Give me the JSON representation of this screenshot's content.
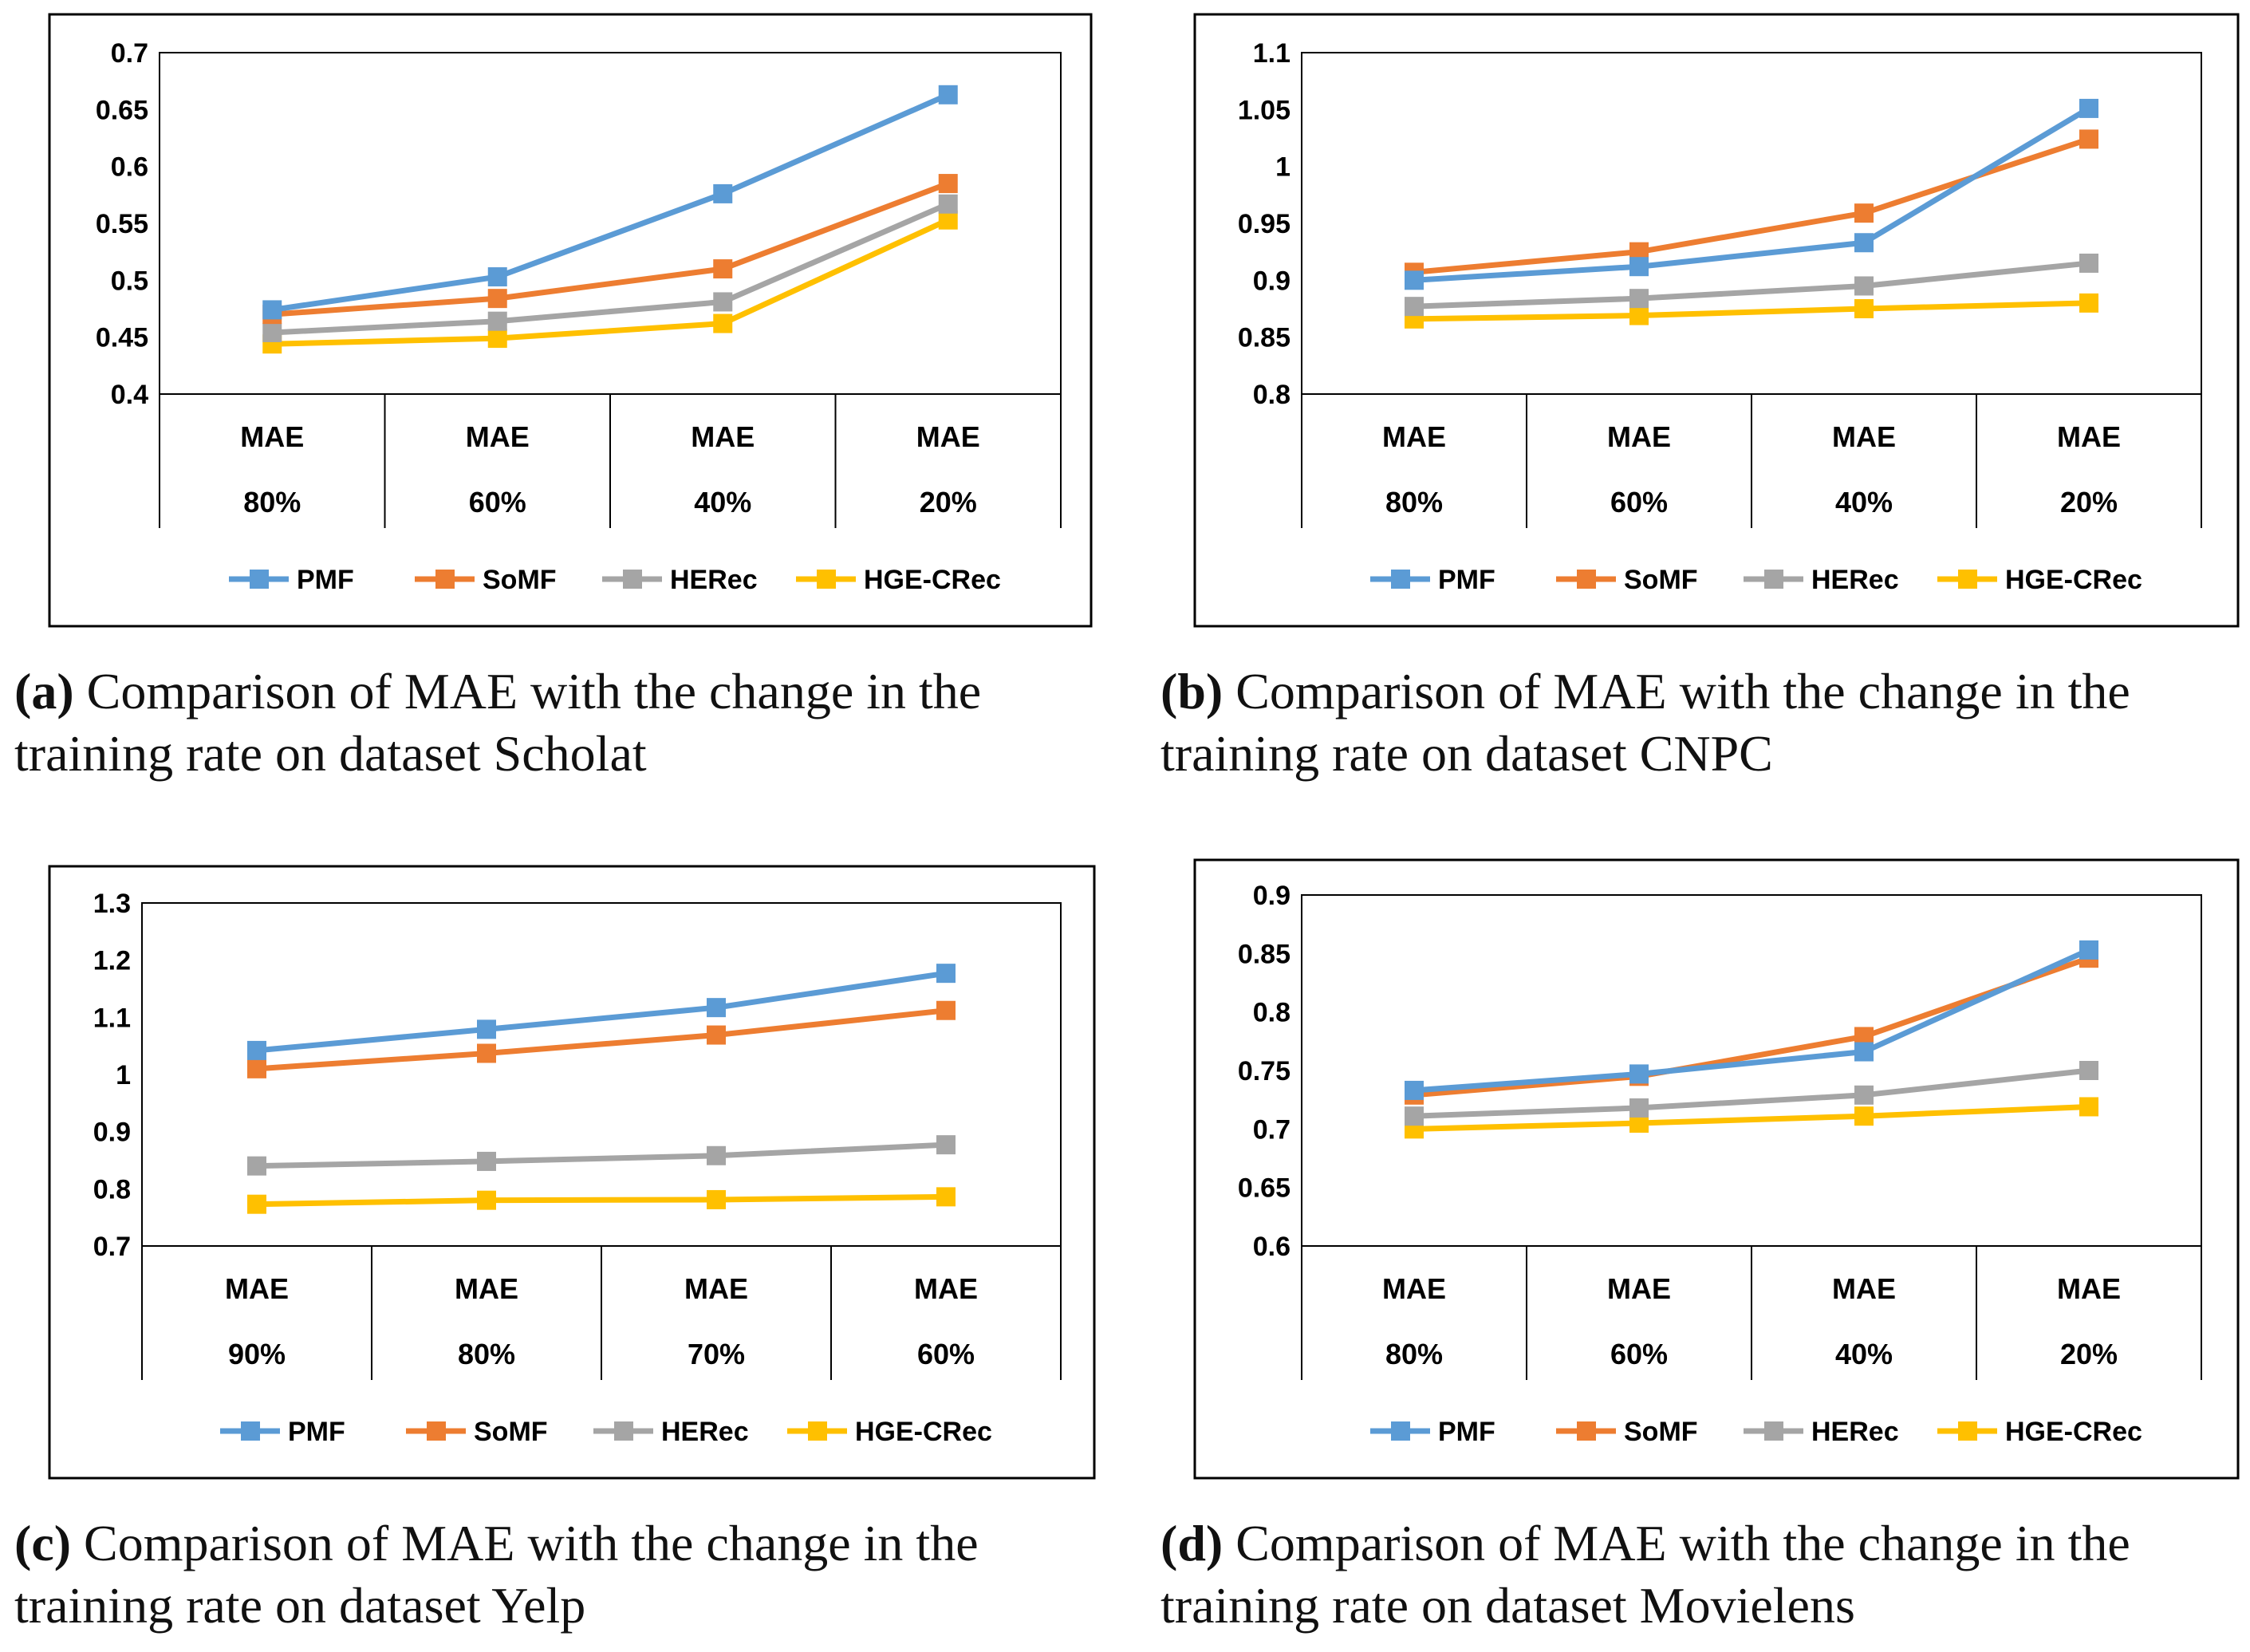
{
  "colors": {
    "PMF": "#5B9BD5",
    "SoMF": "#ED7D31",
    "HERec": "#A5A5A5",
    "HGE-CRec": "#FFC000"
  },
  "chart_data": [
    {
      "type": "line",
      "panel_label": "(a)",
      "caption_text": "Comparison of MAE with the change in the training rate on dataset Scholat",
      "categories": [
        "MAE",
        "MAE",
        "MAE",
        "MAE"
      ],
      "subcategories": [
        "80%",
        "60%",
        "40%",
        "20%"
      ],
      "ylim": [
        0.4,
        0.7
      ],
      "yticks": [
        "0.4",
        "0.45",
        "0.5",
        "0.55",
        "0.6",
        "0.65",
        "0.7"
      ],
      "series": [
        {
          "name": "PMF",
          "values": [
            0.474,
            0.503,
            0.576,
            0.663
          ]
        },
        {
          "name": "SoMF",
          "values": [
            0.47,
            0.484,
            0.51,
            0.585
          ]
        },
        {
          "name": "HERec",
          "values": [
            0.454,
            0.464,
            0.481,
            0.567
          ]
        },
        {
          "name": "HGE-CRec",
          "values": [
            0.444,
            0.449,
            0.462,
            0.553
          ]
        }
      ]
    },
    {
      "type": "line",
      "panel_label": "(b)",
      "caption_text": "Comparison of MAE with the change in the training rate on dataset CNPC",
      "categories": [
        "MAE",
        "MAE",
        "MAE",
        "MAE"
      ],
      "subcategories": [
        "80%",
        "60%",
        "40%",
        "20%"
      ],
      "ylim": [
        0.8,
        1.1
      ],
      "yticks": [
        "0.8",
        "0.85",
        "0.9",
        "0.95",
        "1",
        "1.05",
        "1.1"
      ],
      "series": [
        {
          "name": "PMF",
          "values": [
            0.9,
            0.912,
            0.933,
            1.051
          ]
        },
        {
          "name": "SoMF",
          "values": [
            0.907,
            0.925,
            0.959,
            1.024
          ]
        },
        {
          "name": "HERec",
          "values": [
            0.877,
            0.884,
            0.895,
            0.915
          ]
        },
        {
          "name": "HGE-CRec",
          "values": [
            0.866,
            0.869,
            0.875,
            0.88
          ]
        }
      ]
    },
    {
      "type": "line",
      "panel_label": "(c)",
      "caption_text": "Comparison of MAE with the change in the training rate on dataset Yelp",
      "categories": [
        "MAE",
        "MAE",
        "MAE",
        "MAE"
      ],
      "subcategories": [
        "90%",
        "80%",
        "70%",
        "60%"
      ],
      "ylim": [
        0.7,
        1.3
      ],
      "yticks": [
        "0.7",
        "0.8",
        "0.9",
        "1",
        "1.1",
        "1.2",
        "1.3"
      ],
      "series": [
        {
          "name": "PMF",
          "values": [
            1.042,
            1.079,
            1.117,
            1.177
          ]
        },
        {
          "name": "SoMF",
          "values": [
            1.01,
            1.037,
            1.069,
            1.112
          ]
        },
        {
          "name": "HERec",
          "values": [
            0.84,
            0.848,
            0.858,
            0.877
          ]
        },
        {
          "name": "HGE-CRec",
          "values": [
            0.773,
            0.78,
            0.781,
            0.786
          ]
        }
      ]
    },
    {
      "type": "line",
      "panel_label": "(d)",
      "caption_text": "Comparison of MAE with the change in the training rate on dataset Movielens",
      "categories": [
        "MAE",
        "MAE",
        "MAE",
        "MAE"
      ],
      "subcategories": [
        "80%",
        "60%",
        "40%",
        "20%"
      ],
      "ylim": [
        0.6,
        0.9
      ],
      "yticks": [
        "0.6",
        "0.65",
        "0.7",
        "0.75",
        "0.8",
        "0.85",
        "0.9"
      ],
      "series": [
        {
          "name": "PMF",
          "values": [
            0.733,
            0.747,
            0.766,
            0.853
          ]
        },
        {
          "name": "SoMF",
          "values": [
            0.729,
            0.745,
            0.779,
            0.846
          ]
        },
        {
          "name": "HERec",
          "values": [
            0.711,
            0.718,
            0.729,
            0.75
          ]
        },
        {
          "name": "HGE-CRec",
          "values": [
            0.7,
            0.705,
            0.711,
            0.719
          ]
        }
      ]
    }
  ]
}
